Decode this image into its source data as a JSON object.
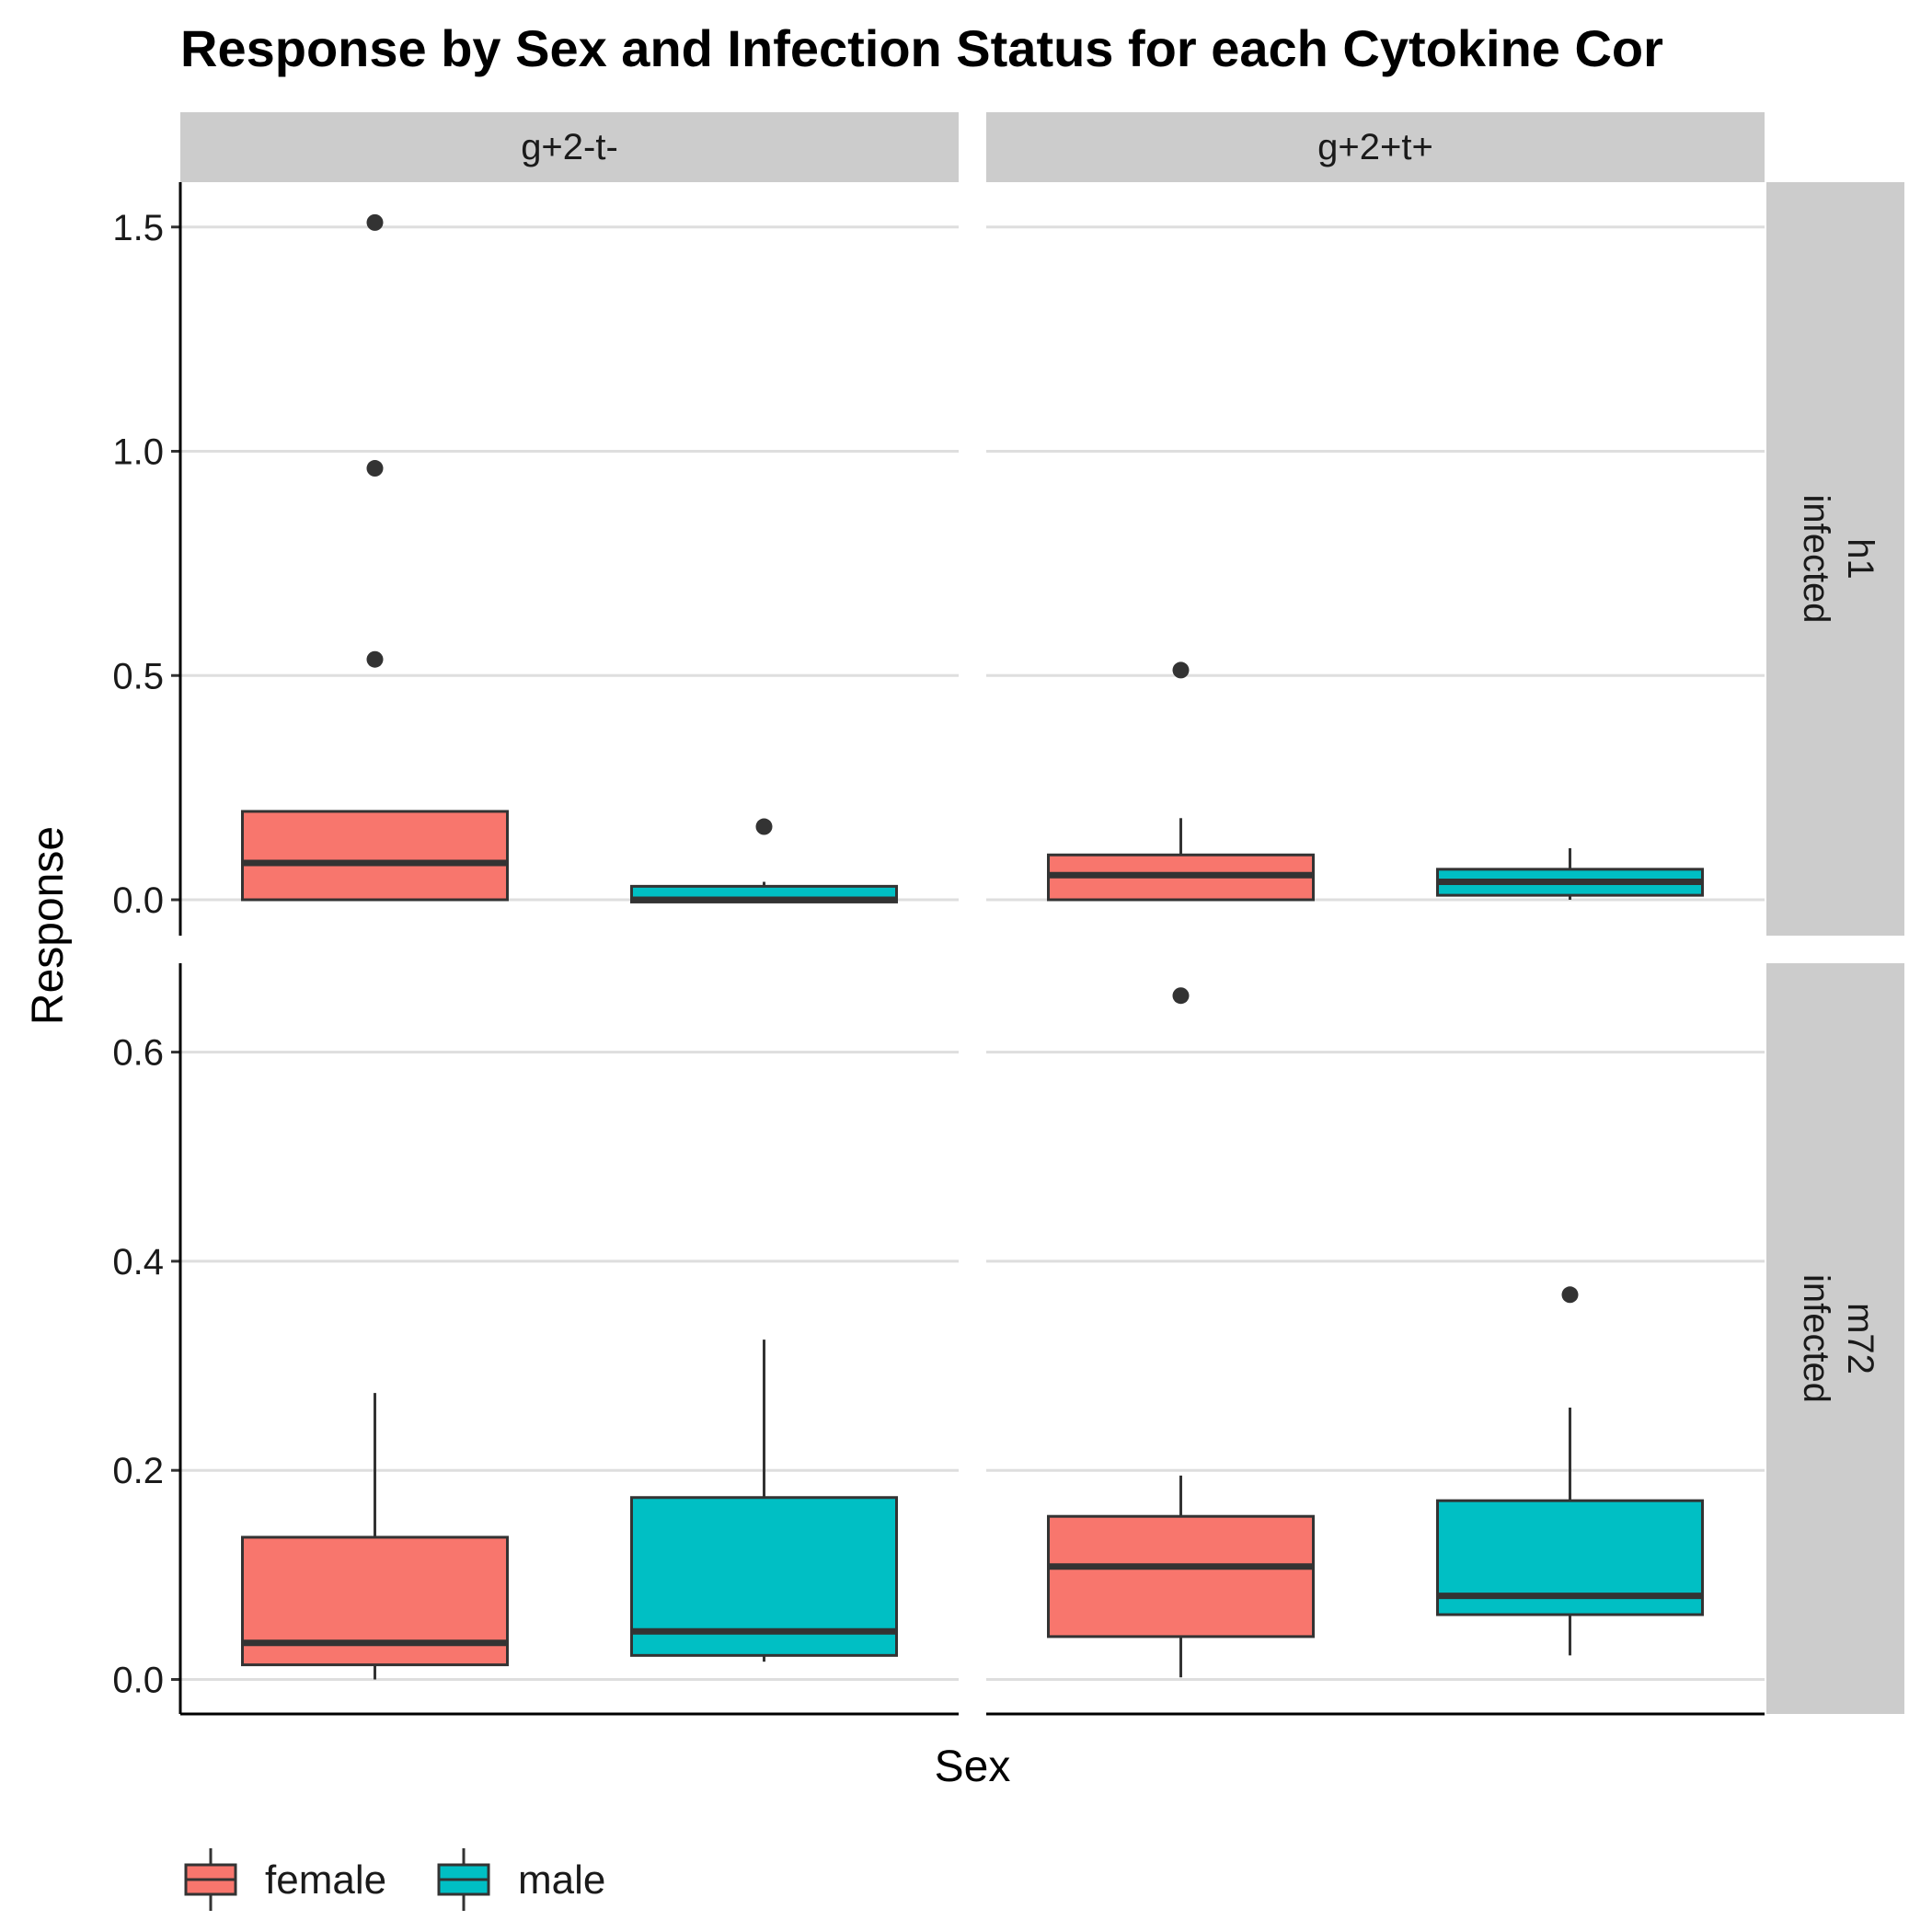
{
  "chart_data": {
    "type": "boxplot",
    "title": "Response by Sex and Infection Status for each Cytokine Cor",
    "xlabel": "Sex",
    "ylabel": "Response",
    "grid": true,
    "legend_placement": "bottom-left",
    "legend": [
      {
        "name": "female",
        "color": "#F8766D"
      },
      {
        "name": "male",
        "color": "#00BFC4"
      }
    ],
    "columns": [
      "g+2-t-",
      "g+2+t+"
    ],
    "rows": [
      {
        "label": "h1\ninfected",
        "lines": [
          "h1",
          "infected"
        ],
        "ylim": [
          -0.08,
          1.6
        ],
        "ticks": [
          "0.0",
          "0.5",
          "1.0",
          "1.5"
        ]
      },
      {
        "label": "m72\ninfected",
        "lines": [
          "m72",
          "infected"
        ],
        "ylim": [
          -0.033,
          0.685
        ],
        "ticks": [
          "0.0",
          "0.2",
          "0.4",
          "0.6"
        ]
      }
    ],
    "boxes": [
      {
        "row": 0,
        "col": 0,
        "group": "female",
        "whisker_low": 0.0,
        "q1": 0.0,
        "median": 0.082,
        "q3": 0.197,
        "whisker_high": 0.197,
        "outliers": [
          0.536,
          0.962,
          1.51
        ]
      },
      {
        "row": 0,
        "col": 0,
        "group": "male",
        "whisker_low": -0.005,
        "q1": -0.005,
        "median": 0.0,
        "q3": 0.03,
        "whisker_high": 0.04,
        "outliers": [
          0.163
        ]
      },
      {
        "row": 0,
        "col": 1,
        "group": "female",
        "whisker_low": 0.0,
        "q1": 0.0,
        "median": 0.055,
        "q3": 0.1,
        "whisker_high": 0.182,
        "outliers": [
          0.512
        ]
      },
      {
        "row": 0,
        "col": 1,
        "group": "male",
        "whisker_low": 0.0,
        "q1": 0.01,
        "median": 0.04,
        "q3": 0.068,
        "whisker_high": 0.115,
        "outliers": []
      },
      {
        "row": 1,
        "col": 0,
        "group": "female",
        "whisker_low": 0.0,
        "q1": 0.014,
        "median": 0.035,
        "q3": 0.136,
        "whisker_high": 0.274,
        "outliers": []
      },
      {
        "row": 1,
        "col": 0,
        "group": "male",
        "whisker_low": 0.017,
        "q1": 0.023,
        "median": 0.046,
        "q3": 0.174,
        "whisker_high": 0.325,
        "outliers": []
      },
      {
        "row": 1,
        "col": 1,
        "group": "female",
        "whisker_low": 0.002,
        "q1": 0.041,
        "median": 0.108,
        "q3": 0.156,
        "whisker_high": 0.195,
        "outliers": [
          0.654
        ]
      },
      {
        "row": 1,
        "col": 1,
        "group": "male",
        "whisker_low": 0.023,
        "q1": 0.062,
        "median": 0.08,
        "q3": 0.171,
        "whisker_high": 0.26,
        "outliers": [
          0.368
        ]
      }
    ]
  }
}
